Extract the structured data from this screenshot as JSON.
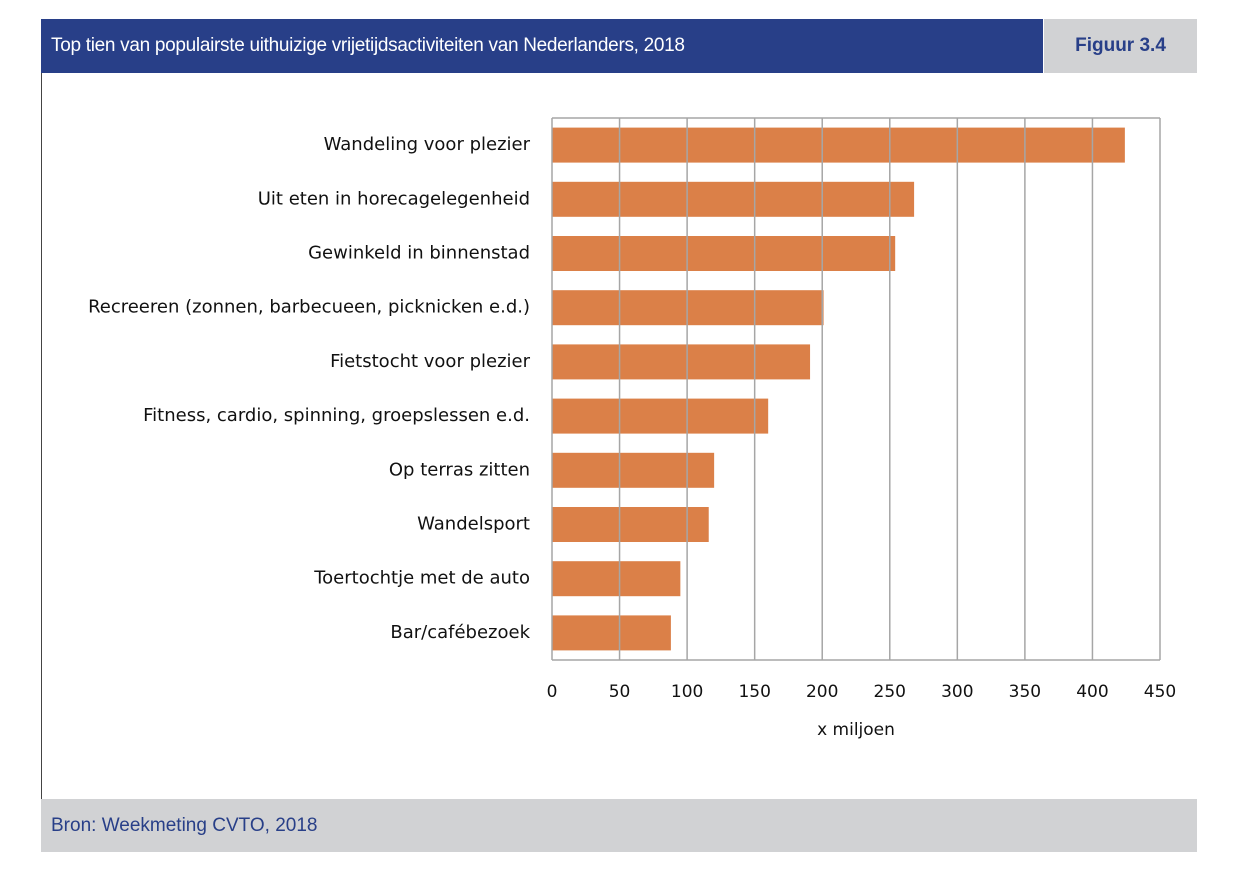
{
  "header": {
    "title": "Top tien van populairste uithuizige vrijetijdsactiviteiten van Nederlanders, 2018",
    "figure_label": "Figuur 3.4"
  },
  "footer": {
    "source": "Bron: Weekmeting CVTO, 2018"
  },
  "colors": {
    "bar": "#db8048",
    "header": "#283f88",
    "panel": "#d1d2d4",
    "grid": "#a6a6a6"
  },
  "chart_data": {
    "type": "bar",
    "orientation": "horizontal",
    "categories": [
      "Wandeling voor plezier",
      "Uit eten in horecagelegenheid",
      "Gewinkeld in binnenstad",
      "Recreeren  (zonnen, barbecueen, picknicken e.d.)",
      "Fietstocht voor plezier",
      "Fitness, cardio, spinning, groepslessen e.d.",
      "Op terras zitten",
      "Wandelsport",
      "Toertochtje met de auto",
      "Bar/cafébezoek"
    ],
    "values": [
      424,
      268,
      254,
      201,
      191,
      160,
      120,
      116,
      95,
      88
    ],
    "xlabel": "x miljoen",
    "xlim": [
      0,
      450
    ],
    "xticks": [
      0,
      50,
      100,
      150,
      200,
      250,
      300,
      350,
      400,
      450
    ],
    "grid": true,
    "data_labels": true
  }
}
